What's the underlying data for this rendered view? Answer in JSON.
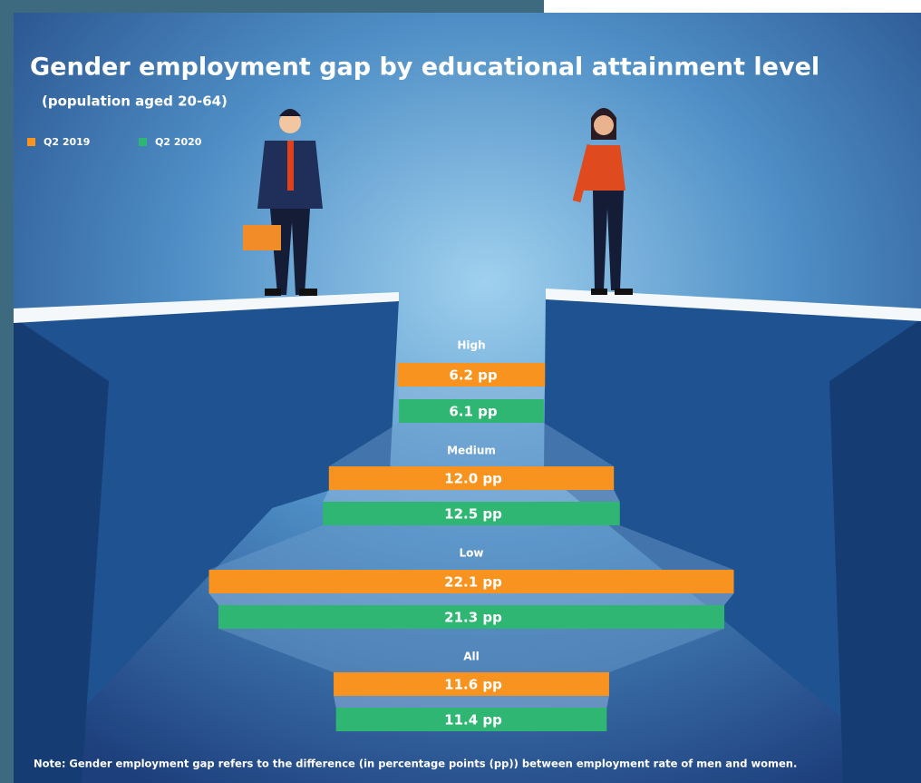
{
  "chart_data": {
    "type": "gap-bar",
    "title": "Gender employment gap by educational attainment level",
    "subtitle": "(population aged 20-64)",
    "note": "Note: Gender employment gap refers to the difference (in percentage points (pp)) between employment rate of men and women.",
    "categories": [
      "High",
      "Medium",
      "Low",
      "All"
    ],
    "series": [
      {
        "name": "Q2 2019",
        "color": "#f7931e",
        "values": [
          6.2,
          12.0,
          22.1,
          11.6
        ],
        "value_labels": [
          "6.2 pp",
          "12.0 pp",
          "22.1 pp",
          "11.6 pp"
        ]
      },
      {
        "name": "Q2 2020",
        "color": "#2fb673",
        "values": [
          6.1,
          12.5,
          21.3,
          11.4
        ],
        "value_labels": [
          "6.1 pp",
          "12.5 pp",
          "21.3 pp",
          "11.4 pp"
        ]
      }
    ]
  }
}
